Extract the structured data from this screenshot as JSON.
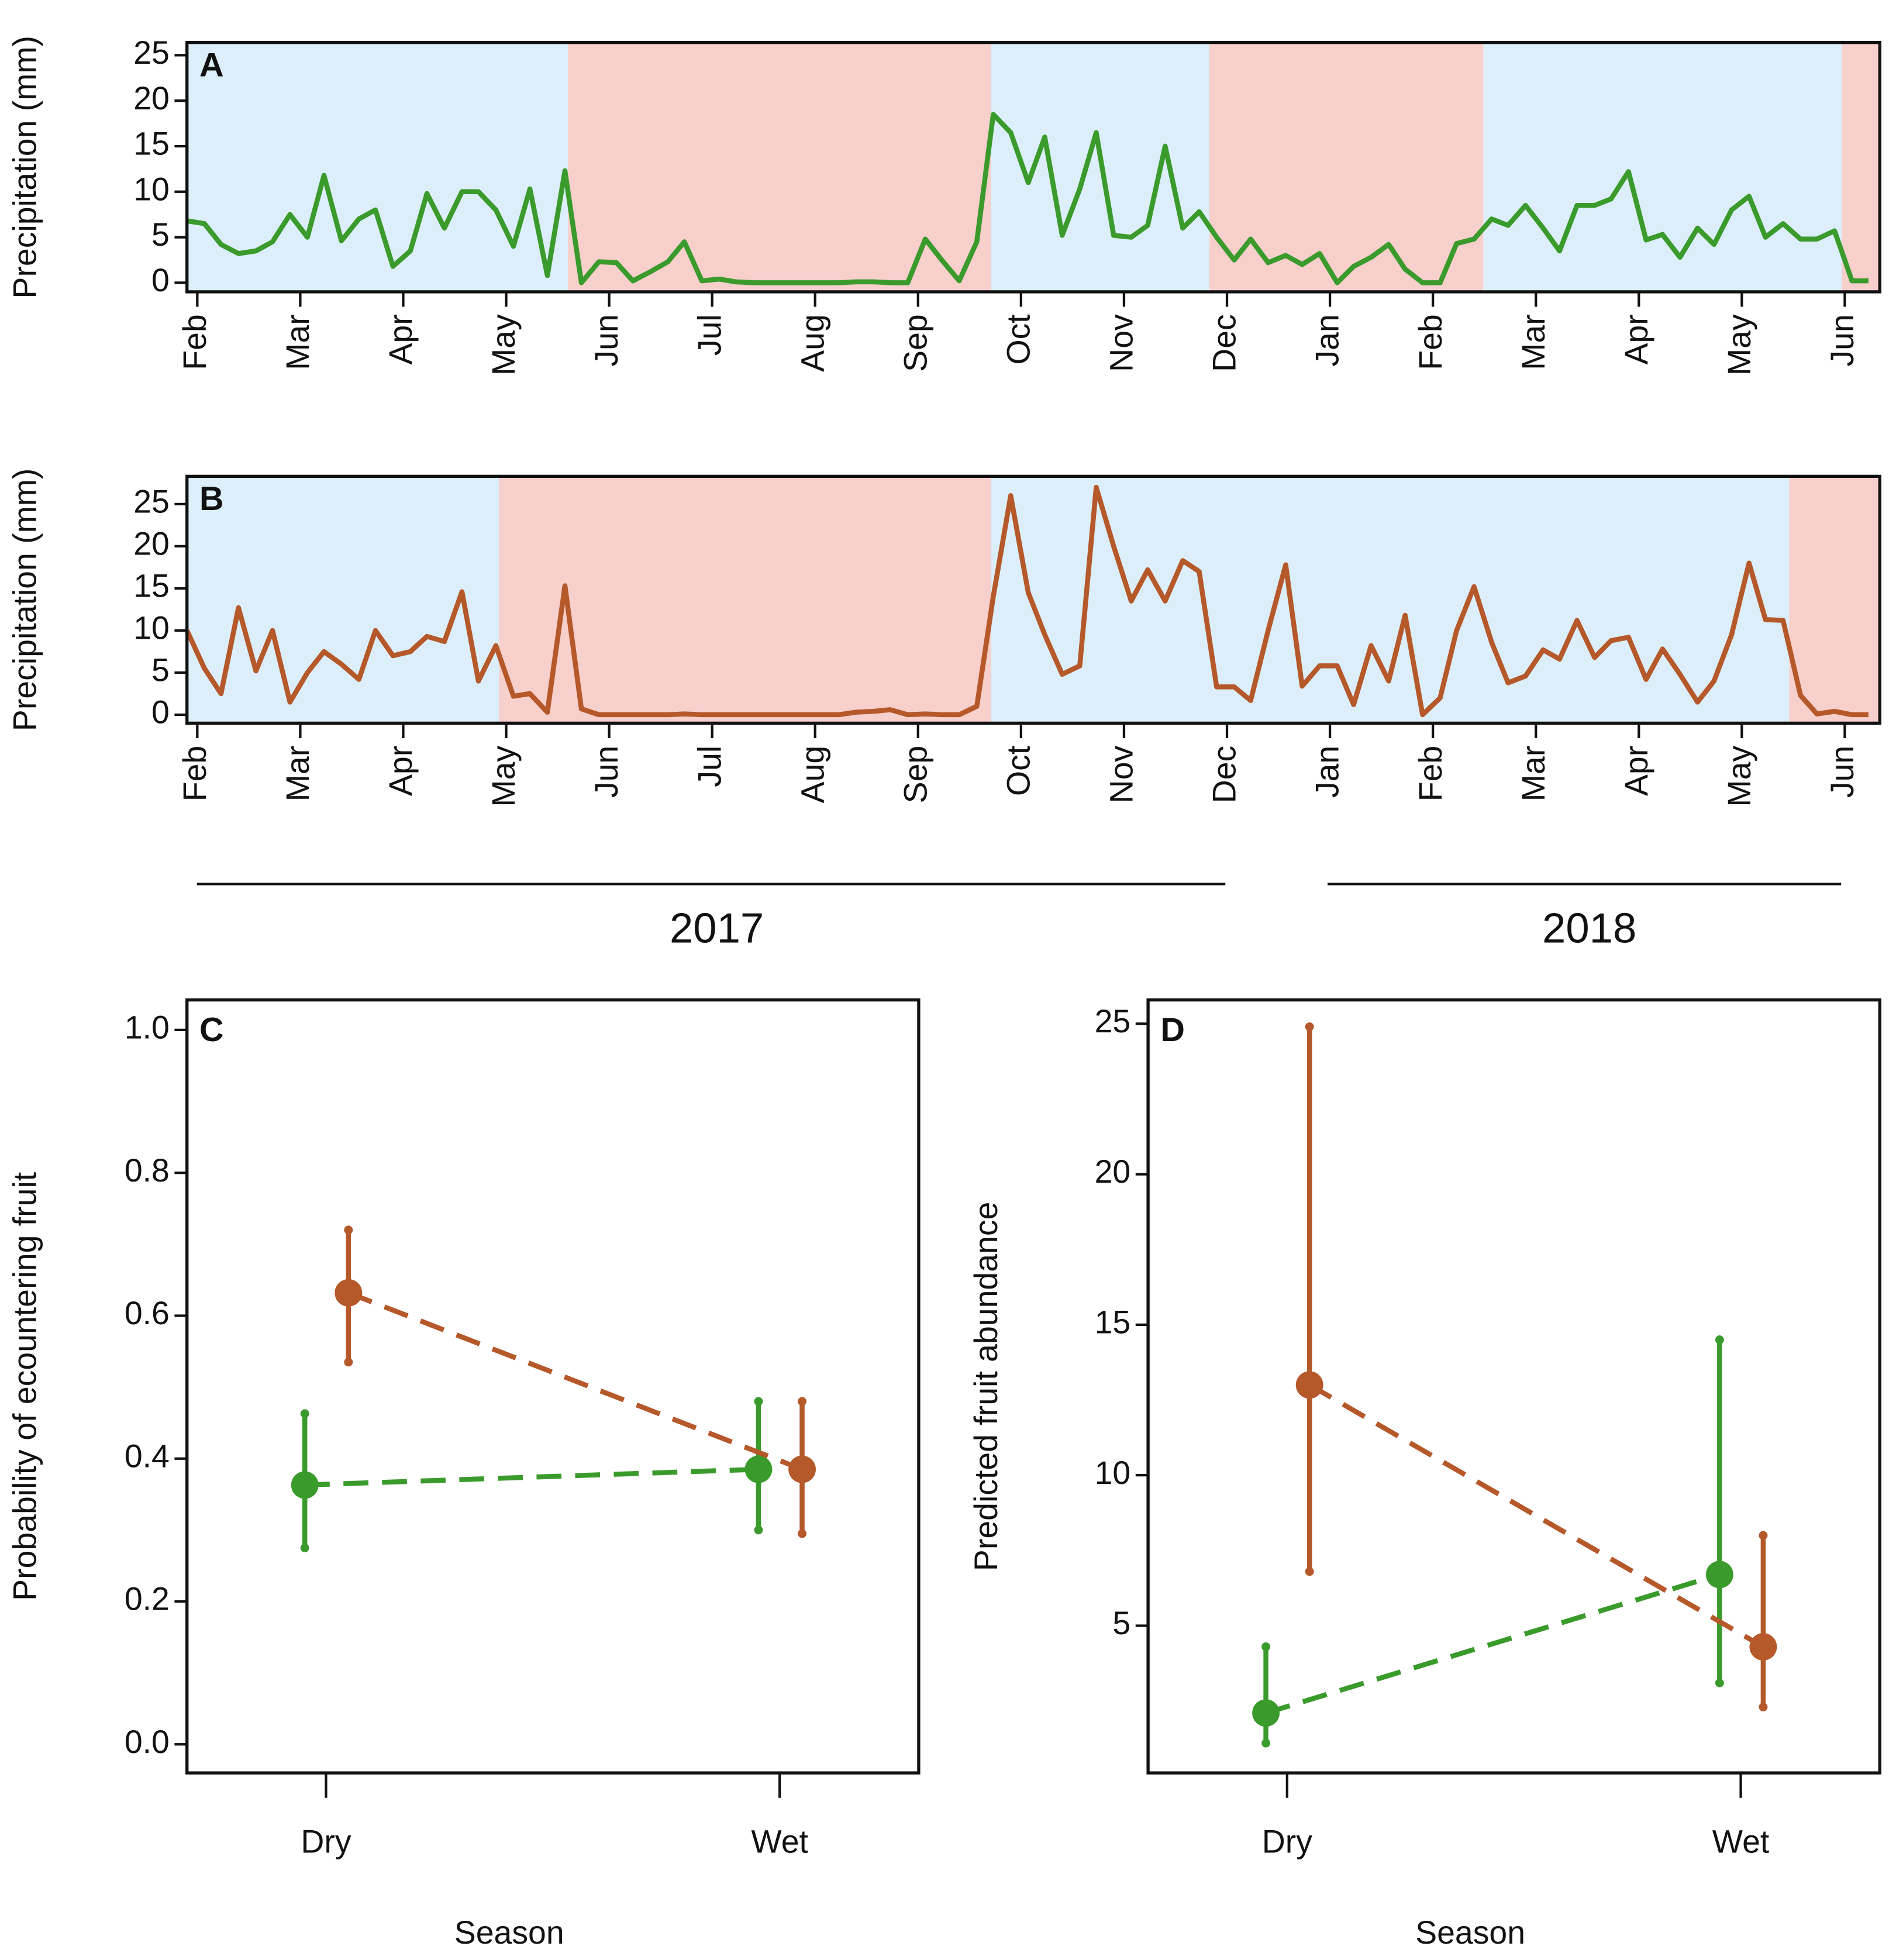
{
  "chart_data": [
    {
      "type": "line",
      "label": "A",
      "ylabel": "Precipitation (mm)",
      "xlim": [
        -0.1,
        16.34
      ],
      "xticks": [
        {
          "value": 0,
          "label": "Feb"
        },
        {
          "value": 1,
          "label": "Mar"
        },
        {
          "value": 2,
          "label": "Apr"
        },
        {
          "value": 3,
          "label": "May"
        },
        {
          "value": 4,
          "label": "Jun"
        },
        {
          "value": 5,
          "label": "Jul"
        },
        {
          "value": 6,
          "label": "Aug"
        },
        {
          "value": 7,
          "label": "Sep"
        },
        {
          "value": 8,
          "label": "Oct"
        },
        {
          "value": 9,
          "label": "Nov"
        },
        {
          "value": 10,
          "label": "Dec"
        },
        {
          "value": 11,
          "label": "Jan"
        },
        {
          "value": 12,
          "label": "Feb"
        },
        {
          "value": 13,
          "label": "Mar"
        },
        {
          "value": 14,
          "label": "Apr"
        },
        {
          "value": 15,
          "label": "May"
        },
        {
          "value": 16,
          "label": "Jun"
        }
      ],
      "ylim": [
        -1,
        26.4
      ],
      "yticks": [
        0,
        5,
        10,
        15,
        20,
        25
      ],
      "bands": [
        {
          "start": -0.1,
          "end": 3.6,
          "color": "#dceef9"
        },
        {
          "start": 3.6,
          "end": 7.71,
          "color": "#f7cfcb"
        },
        {
          "start": 7.71,
          "end": 9.83,
          "color": "#dceef9"
        },
        {
          "start": 9.83,
          "end": 12.49,
          "color": "#f7cfcb"
        },
        {
          "start": 12.49,
          "end": 15.97,
          "color": "#dceef9"
        },
        {
          "start": 15.97,
          "end": 16.34,
          "color": "#f7cfcb"
        }
      ],
      "x": [
        -0.1,
        0.07,
        0.23,
        0.4,
        0.57,
        0.73,
        0.9,
        1.07,
        1.23,
        1.4,
        1.57,
        1.73,
        1.9,
        2.07,
        2.23,
        2.4,
        2.57,
        2.73,
        2.9,
        3.07,
        3.23,
        3.4,
        3.57,
        3.73,
        3.9,
        4.07,
        4.23,
        4.4,
        4.57,
        4.73,
        4.9,
        5.07,
        5.23,
        5.4,
        5.57,
        5.73,
        5.9,
        6.07,
        6.23,
        6.4,
        6.57,
        6.73,
        6.9,
        7.07,
        7.23,
        7.4,
        7.57,
        7.73,
        7.9,
        8.07,
        8.23,
        8.4,
        8.57,
        8.73,
        8.9,
        9.07,
        9.23,
        9.4,
        9.57,
        9.73,
        9.9,
        10.07,
        10.23,
        10.4,
        10.57,
        10.73,
        10.9,
        11.07,
        11.23,
        11.4,
        11.57,
        11.73,
        11.9,
        12.07,
        12.23,
        12.4,
        12.57,
        12.73,
        12.9,
        13.07,
        13.23,
        13.4,
        13.57,
        13.73,
        13.9,
        14.07,
        14.23,
        14.4,
        14.57,
        14.73,
        14.9,
        15.07,
        15.23,
        15.4,
        15.57,
        15.73,
        15.9,
        16.07,
        16.23
      ],
      "series": [
        {
          "color": "#3a9b2c",
          "values": [
            6.8,
            6.5,
            4.2,
            3.2,
            3.5,
            4.5,
            7.5,
            5,
            11.8,
            4.6,
            7,
            8,
            1.8,
            3.5,
            9.8,
            6,
            10,
            10,
            8,
            4,
            10.3,
            0.8,
            12.3,
            0,
            2.3,
            2.2,
            0.2,
            1.2,
            2.3,
            4.5,
            0.2,
            0.4,
            0.1,
            0,
            0,
            0,
            0,
            0,
            0,
            0.1,
            0.1,
            0,
            0,
            4.8,
            2.5,
            0.2,
            4.5,
            18.5,
            16.5,
            11,
            16,
            5.2,
            10.3,
            16.5,
            5.2,
            5,
            6.3,
            15,
            6,
            7.8,
            5,
            2.5,
            4.8,
            2.2,
            3,
            2,
            3.2,
            0,
            1.8,
            2.8,
            4.2,
            1.5,
            0,
            0,
            4.3,
            4.8,
            7,
            6.3,
            8.5,
            6,
            3.5,
            8.5,
            8.5,
            9.2,
            12.2,
            4.7,
            5.3,
            2.8,
            6,
            4.2,
            8,
            9.5,
            5,
            6.5,
            4.8,
            4.8,
            5.7,
            0.2,
            0.2
          ]
        }
      ]
    },
    {
      "type": "line",
      "label": "B",
      "ylabel": "Precipitation (mm)",
      "xlim": [
        -0.1,
        16.34
      ],
      "xticks": [
        {
          "value": 0,
          "label": "Feb"
        },
        {
          "value": 1,
          "label": "Mar"
        },
        {
          "value": 2,
          "label": "Apr"
        },
        {
          "value": 3,
          "label": "May"
        },
        {
          "value": 4,
          "label": "Jun"
        },
        {
          "value": 5,
          "label": "Jul"
        },
        {
          "value": 6,
          "label": "Aug"
        },
        {
          "value": 7,
          "label": "Sep"
        },
        {
          "value": 8,
          "label": "Oct"
        },
        {
          "value": 9,
          "label": "Nov"
        },
        {
          "value": 10,
          "label": "Dec"
        },
        {
          "value": 11,
          "label": "Jan"
        },
        {
          "value": 12,
          "label": "Feb"
        },
        {
          "value": 13,
          "label": "Mar"
        },
        {
          "value": 14,
          "label": "Apr"
        },
        {
          "value": 15,
          "label": "May"
        },
        {
          "value": 16,
          "label": "Jun"
        }
      ],
      "ylim": [
        -1,
        28.3
      ],
      "yticks": [
        0,
        5,
        10,
        15,
        20,
        25
      ],
      "bands": [
        {
          "start": -0.1,
          "end": 2.93,
          "color": "#dceef9"
        },
        {
          "start": 2.93,
          "end": 7.71,
          "color": "#f7cfcb"
        },
        {
          "start": 7.71,
          "end": 15.46,
          "color": "#dceef9"
        },
        {
          "start": 15.46,
          "end": 16.34,
          "color": "#f7cfcb"
        }
      ],
      "x": [
        -0.1,
        0.07,
        0.23,
        0.4,
        0.57,
        0.73,
        0.9,
        1.07,
        1.23,
        1.4,
        1.57,
        1.73,
        1.9,
        2.07,
        2.23,
        2.4,
        2.57,
        2.73,
        2.9,
        3.07,
        3.23,
        3.4,
        3.57,
        3.73,
        3.9,
        4.07,
        4.23,
        4.4,
        4.57,
        4.73,
        4.9,
        5.07,
        5.23,
        5.4,
        5.57,
        5.73,
        5.9,
        6.07,
        6.23,
        6.4,
        6.57,
        6.73,
        6.9,
        7.07,
        7.23,
        7.4,
        7.57,
        7.73,
        7.9,
        8.07,
        8.23,
        8.4,
        8.57,
        8.73,
        8.9,
        9.07,
        9.23,
        9.4,
        9.57,
        9.73,
        9.9,
        10.07,
        10.23,
        10.4,
        10.57,
        10.73,
        10.9,
        11.07,
        11.23,
        11.4,
        11.57,
        11.73,
        11.9,
        12.07,
        12.23,
        12.4,
        12.57,
        12.73,
        12.9,
        13.07,
        13.23,
        13.4,
        13.57,
        13.73,
        13.9,
        14.07,
        14.23,
        14.4,
        14.57,
        14.73,
        14.9,
        15.07,
        15.23,
        15.4,
        15.57,
        15.73,
        15.9,
        16.07,
        16.23
      ],
      "series": [
        {
          "color": "#b5582a",
          "values": [
            10,
            5.5,
            2.5,
            12.7,
            5.2,
            10,
            1.5,
            5,
            7.5,
            6,
            4.2,
            10,
            7,
            7.5,
            9.3,
            8.7,
            14.6,
            4,
            8.2,
            2.2,
            2.5,
            0.3,
            15.3,
            0.7,
            0,
            0,
            0,
            0,
            0,
            0.1,
            0,
            0,
            0,
            0,
            0,
            0,
            0,
            0,
            0,
            0.3,
            0.4,
            0.6,
            0,
            0.1,
            0,
            0,
            1,
            14,
            26,
            14.5,
            9.5,
            4.8,
            5.8,
            27,
            20,
            13.5,
            17.2,
            13.5,
            18.3,
            17,
            3.3,
            3.3,
            1.7,
            10,
            17.8,
            3.4,
            5.8,
            5.8,
            1.2,
            8.2,
            4,
            11.8,
            0,
            2,
            10,
            15.2,
            8.6,
            3.8,
            4.6,
            7.7,
            6.6,
            11.2,
            6.8,
            8.8,
            9.2,
            4.2,
            7.8,
            4.8,
            1.5,
            4,
            9.5,
            18,
            11.3,
            11.2,
            2.3,
            0.1,
            0.4,
            0,
            0
          ]
        }
      ]
    },
    {
      "type": "dot_errorbar",
      "label": "C",
      "ylabel": "Probability of ecountering fruit",
      "xlabel": "Season",
      "categories": [
        "Dry",
        "Wet"
      ],
      "ylim": [
        -0.04,
        1.042
      ],
      "yticks": [
        {
          "value": 0,
          "label": "0.0"
        },
        {
          "value": 0.2,
          "label": "0.2"
        },
        {
          "value": 0.4,
          "label": "0.4"
        },
        {
          "value": 0.6,
          "label": "0.6"
        },
        {
          "value": 0.8,
          "label": "0.8"
        },
        {
          "value": 1,
          "label": "1.0"
        }
      ],
      "series": [
        {
          "color": "#3a9b2c",
          "values": [
            0.363,
            0.385
          ],
          "lower": [
            0.275,
            0.3
          ],
          "upper": [
            0.463,
            0.48
          ]
        },
        {
          "color": "#b5582a",
          "values": [
            0.632,
            0.385
          ],
          "lower": [
            0.535,
            0.295
          ],
          "upper": [
            0.72,
            0.48
          ]
        }
      ]
    },
    {
      "type": "dot_errorbar",
      "label": "D",
      "ylabel": "Predicted fruit abundance",
      "xlabel": "Season",
      "categories": [
        "Dry",
        "Wet"
      ],
      "ylim": [
        0.11,
        25.79
      ],
      "yticks": [
        5,
        10,
        15,
        20,
        25
      ],
      "series": [
        {
          "color": "#3a9b2c",
          "values": [
            2.1,
            6.7
          ],
          "lower": [
            1.1,
            3.1
          ],
          "upper": [
            4.3,
            14.5
          ]
        },
        {
          "color": "#b5582a",
          "values": [
            13,
            4.3
          ],
          "lower": [
            6.8,
            2.3
          ],
          "upper": [
            24.9,
            8
          ]
        }
      ]
    }
  ],
  "year_labels": [
    "2017",
    "2018"
  ]
}
